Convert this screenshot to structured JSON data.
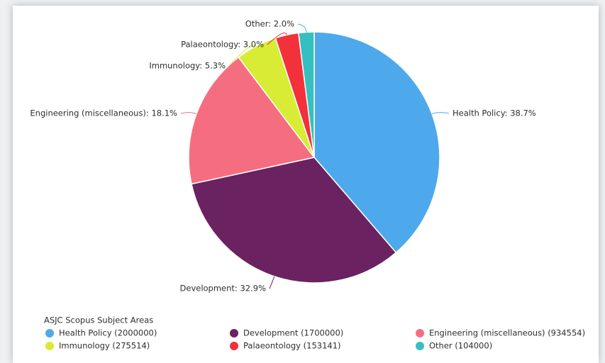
{
  "chart_data": {
    "type": "pie",
    "categories": [
      "Health Policy",
      "Development",
      "Engineering (miscellaneous)",
      "Immunology",
      "Palaeontology",
      "Other"
    ],
    "values": [
      38.7,
      32.9,
      18.1,
      5.3,
      3.0,
      2.0
    ],
    "value_labels": [
      "Health Policy: 38.7%",
      "Development: 32.9%",
      "Engineering (miscellaneous): 18.1%",
      "Immunology: 5.3%",
      "Palaeontology: 3.0%",
      "Other: 2.0%"
    ],
    "colors": [
      "#4ea9ec",
      "#6a2260",
      "#f56e80",
      "#d8ec35",
      "#f2313b",
      "#36bfc0"
    ],
    "legend": {
      "title": "ASJC Scopus Subject Areas",
      "labels": [
        "Health Policy (2000000)",
        "Development (1700000)",
        "Engineering (miscellaneous) (934554)",
        "Immunology (275514)",
        "Palaeontology (153141)",
        "Other (104000)"
      ]
    }
  }
}
